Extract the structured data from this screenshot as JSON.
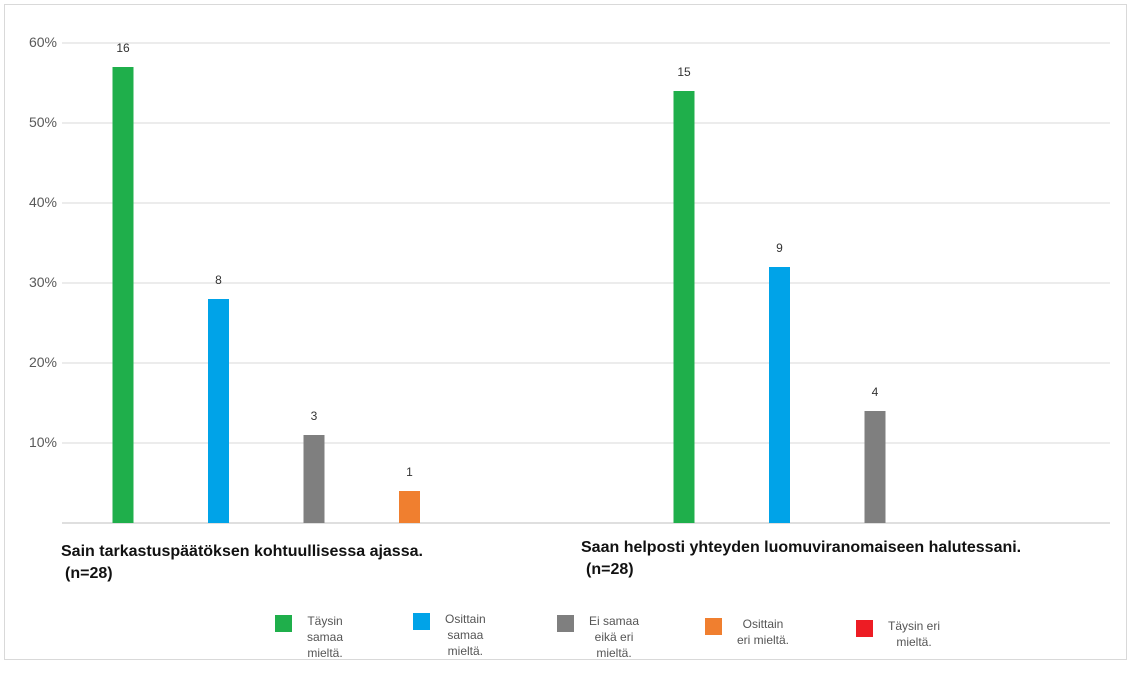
{
  "chart_data": {
    "type": "bar",
    "categories": [
      "Sain tarkastuspäätöksen kohtuullisessa ajassa.",
      "Saan helposti yhteyden luomuviranomaiseen halutessani."
    ],
    "category_notes": [
      "(n=28)",
      "(n=28)"
    ],
    "y_tick_labels": [
      "10%",
      "20%",
      "30%",
      "40%",
      "50%",
      "60%"
    ],
    "ylim": [
      0,
      60
    ],
    "grid": true,
    "legend_position": "bottom",
    "series": [
      {
        "name": "Täysin samaa mieltä.",
        "color": "#1faf4b",
        "values": [
          57,
          54
        ],
        "labels": [
          "16",
          "15"
        ]
      },
      {
        "name": "Osittain samaa mieltä.",
        "color": "#00a3e8",
        "values": [
          28,
          32
        ],
        "labels": [
          "8",
          "9"
        ]
      },
      {
        "name": "Ei samaa eikä eri mieltä.",
        "color": "#7f7f7f",
        "values": [
          11,
          14
        ],
        "labels": [
          "3",
          "4"
        ]
      },
      {
        "name": "Osittain eri mieltä.",
        "color": "#f07f2f",
        "values": [
          4,
          null
        ],
        "labels": [
          "1",
          ""
        ]
      },
      {
        "name": "Täysin eri mieltä.",
        "color": "#ed1c24",
        "values": [
          null,
          null
        ],
        "labels": [
          "",
          ""
        ]
      }
    ]
  },
  "legend": {
    "items": [
      {
        "text": "Täysin\nsamaa\nmieltä."
      },
      {
        "text": "Osittain\nsamaa\nmieltä."
      },
      {
        "text": "Ei samaa\neikä eri\nmieltä."
      },
      {
        "text": "Osittain\neri mieltä."
      },
      {
        "text": "Täysin eri\nmieltä."
      }
    ]
  }
}
